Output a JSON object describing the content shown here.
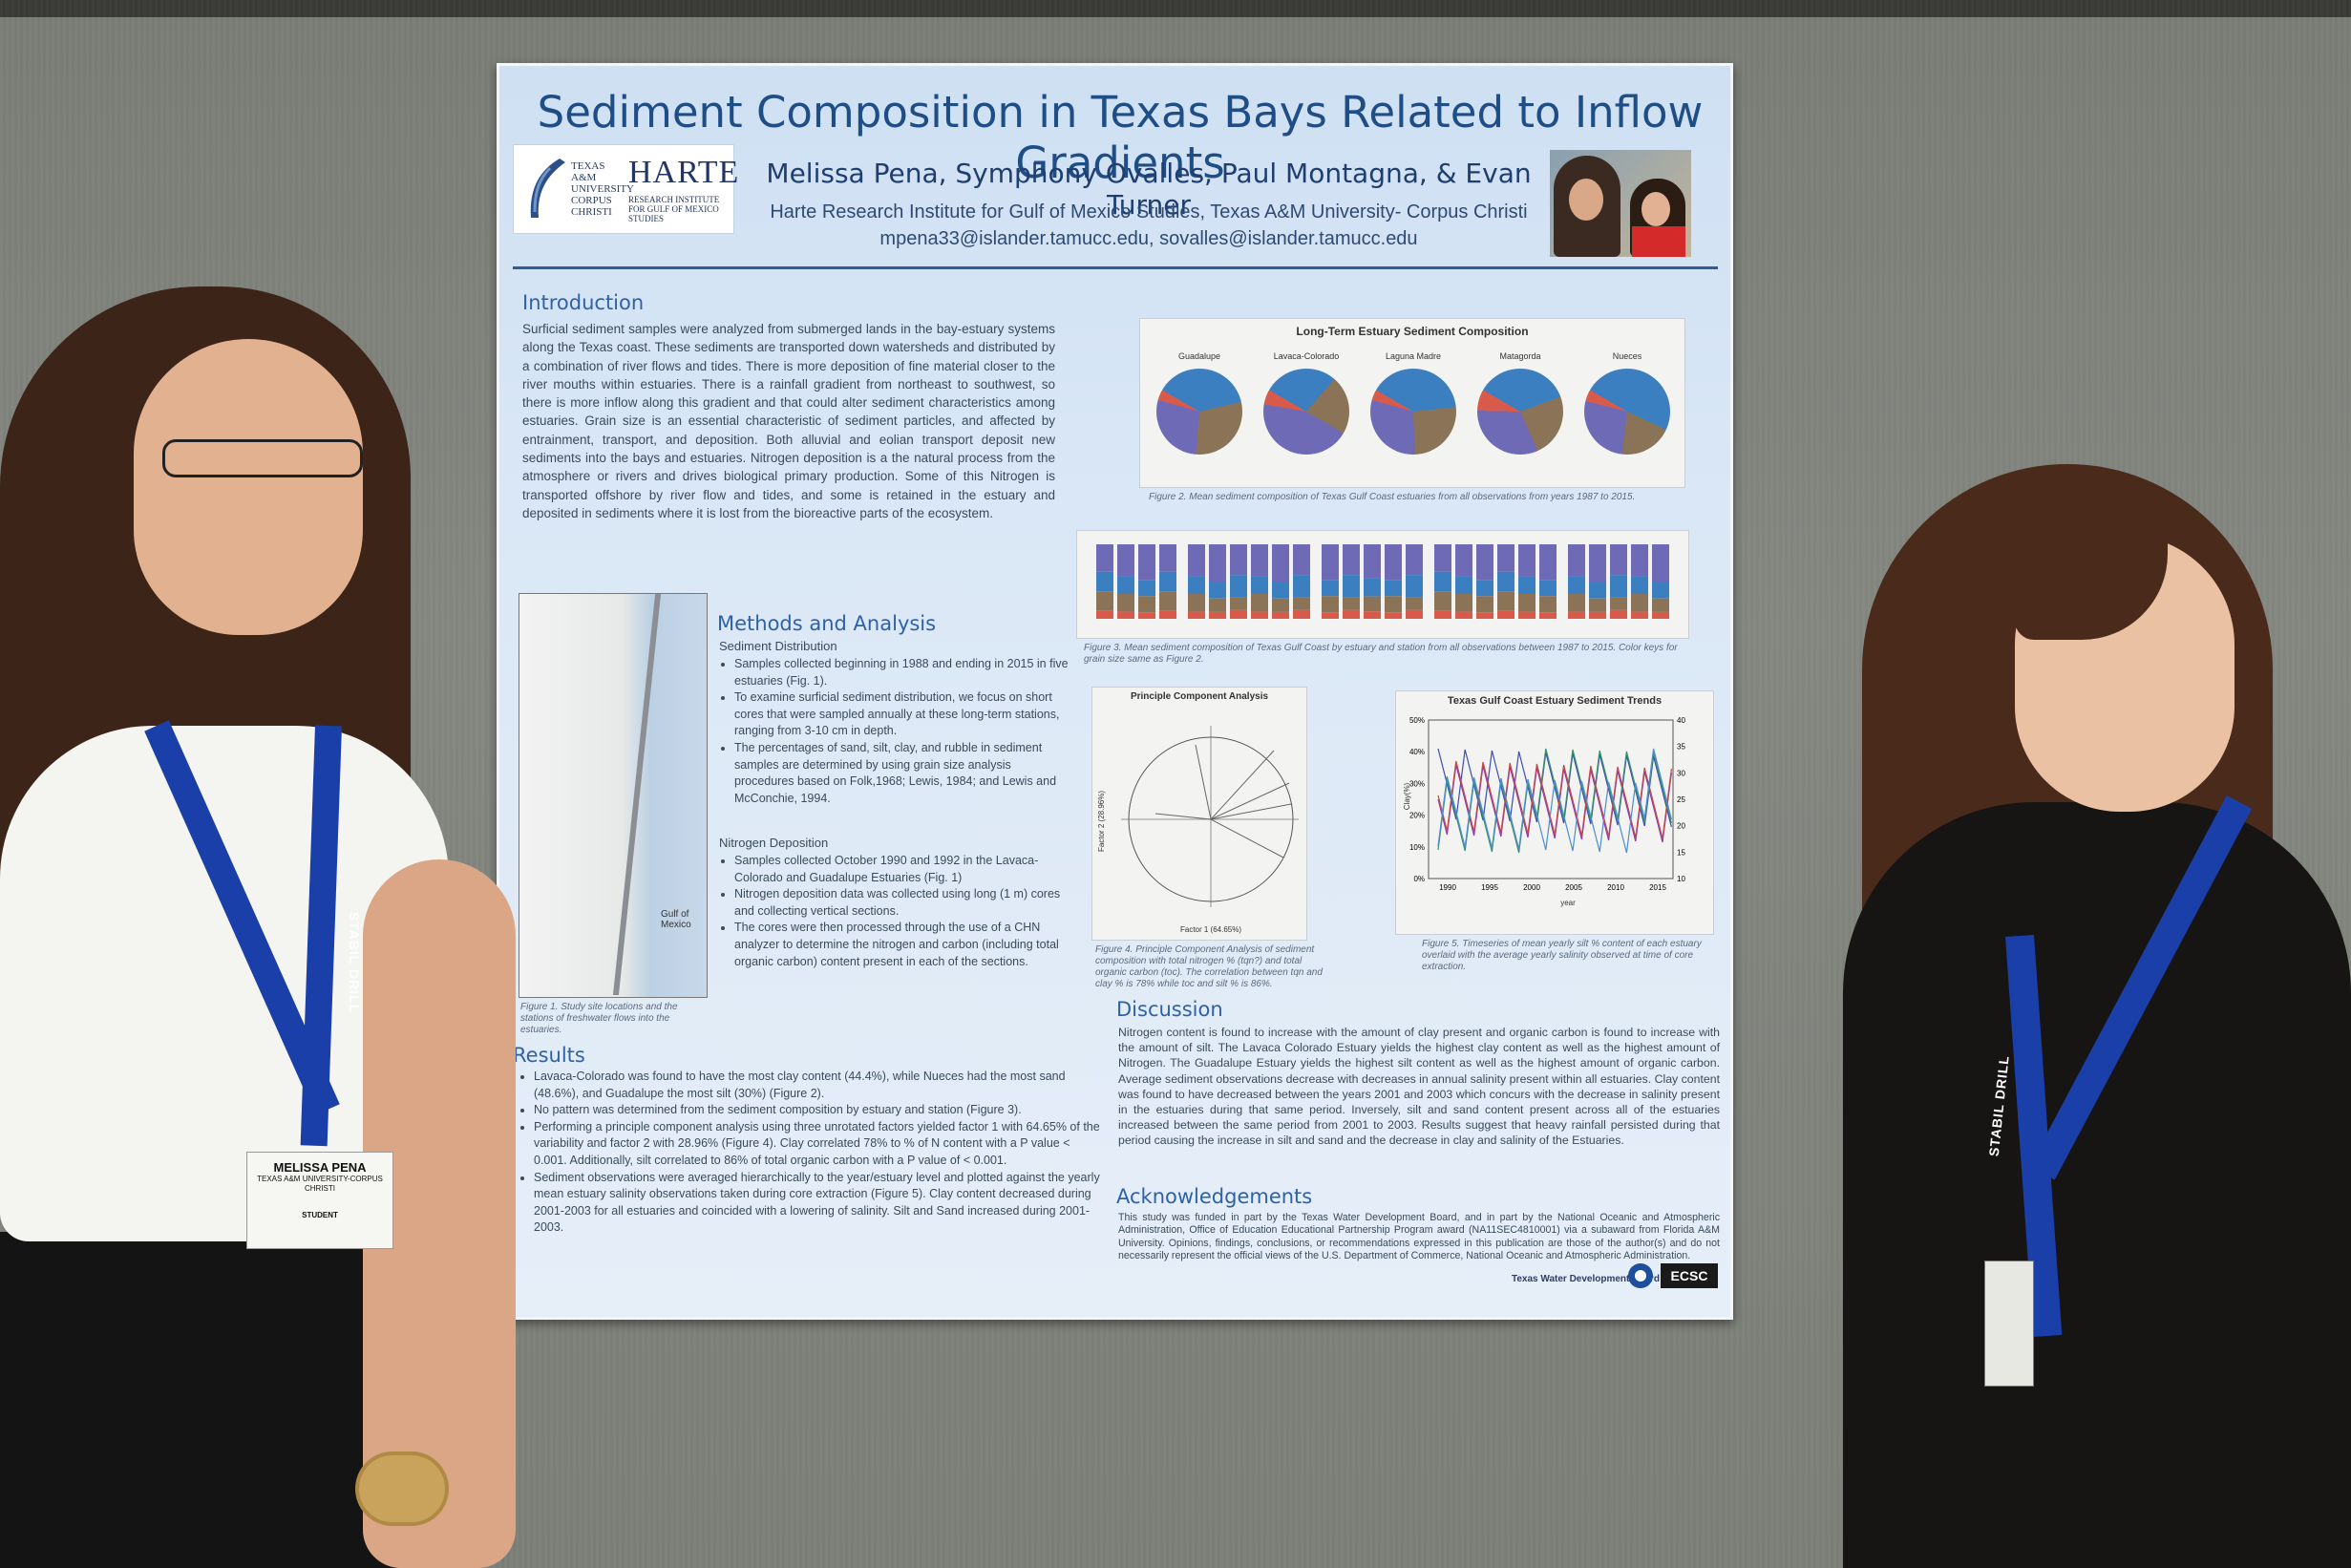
{
  "poster": {
    "title": "Sediment Composition in Texas Bays Related to Inflow Gradients",
    "authors": "Melissa Pena, Symphony Ovalles, Paul Montagna, & Evan Turner",
    "affiliation": "Harte Research Institute for Gulf of Mexico Studies, Texas A&M University- Corpus Christi",
    "emails": "mpena33@islander.tamucc.edu, sovalles@islander.tamucc.edu",
    "logo": {
      "univ": "TEXAS A&M UNIVERSITY CORPUS CHRISTI",
      "name": "HARTE",
      "sub": "RESEARCH INSTITUTE FOR GULF OF MEXICO STUDIES"
    },
    "introduction": {
      "heading": "Introduction",
      "text": "Surficial sediment samples were analyzed from submerged lands in the bay-estuary systems along the Texas coast. These sediments are transported down watersheds and distributed by a combination of river flows and tides. There is more deposition of fine material closer to the river mouths within estuaries. There is a rainfall gradient from northeast to southwest, so there is more inflow along this gradient and that could alter sediment characteristics among estuaries. Grain size is an essential characteristic of sediment particles, and affected by entrainment, transport, and deposition. Both alluvial and eolian transport deposit new sediments into the bays and estuaries. Nitrogen deposition is a the natural process from the atmosphere or rivers and drives biological primary production. Some of this Nitrogen is transported offshore by river flow and tides, and some is retained in the estuary and deposited in sediments where it is lost from the bioreactive parts of the ecosystem."
    },
    "methods": {
      "heading": "Methods and Analysis",
      "sub1": "Sediment Distribution",
      "bullets1": [
        "Samples collected beginning in 1988 and ending in 2015 in five estuaries (Fig. 1).",
        "To examine surficial sediment distribution, we focus on short cores that were sampled annually at these long-term stations, ranging from 3-10 cm in depth.",
        "The percentages of sand, silt, clay, and rubble in sediment samples are determined by using grain size analysis procedures based on Folk,1968; Lewis, 1984; and Lewis and McConchie, 1994."
      ],
      "sub2": "Nitrogen Deposition",
      "bullets2": [
        "Samples collected October 1990 and 1992 in the Lavaca-Colorado and Guadalupe Estuaries (Fig. 1)",
        "Nitrogen deposition data was collected using long (1 m) cores and collecting vertical sections.",
        "The cores were then processed through the use of a CHN analyzer to determine the nitrogen and carbon (including total organic carbon) content present in each of the sections."
      ]
    },
    "map": {
      "gulf_label": "Gulf of Mexico",
      "caption": "Figure 1. Study site locations and the stations of freshwater flows into the estuaries."
    },
    "results": {
      "heading": "Results",
      "bullets": [
        "Lavaca-Colorado was found to have the most clay content (44.4%), while Nueces had the most sand (48.6%), and Guadalupe the most silt (30%) (Figure 2).",
        "No pattern was determined from the sediment composition by estuary and station (Figure 3).",
        "Performing a principle component analysis using three unrotated factors yielded factor 1 with 64.65% of the variability and factor 2 with 28.96% (Figure 4). Clay correlated 78% to % of N content with a P value < 0.001. Additionally, silt correlated to 86% of total organic carbon with a P value of < 0.001.",
        "Sediment observations were averaged hierarchically to the year/estuary level and plotted against the yearly mean estuary salinity observations taken during core extraction (Figure 5). Clay content decreased during 2001-2003 for all estuaries and coincided with a lowering of salinity. Silt and Sand increased during 2001-2003."
      ]
    },
    "discussion": {
      "heading": "Discussion",
      "text": "Nitrogen content is found to increase with the amount of clay present and organic carbon is found to increase with the amount of silt. The Lavaca Colorado Estuary yields the highest clay content as well as the highest amount of Nitrogen. The Guadalupe Estuary yields the highest silt content as well as the highest amount of organic carbon. Average sediment observations decrease with decreases in annual salinity present within all estuaries. Clay content was found to have decreased between the years 2001 and 2003 which concurs with the decrease in salinity present in the estuaries during that same period. Inversely, silt and sand content present across all of the estuaries increased between the same period from 2001 to 2003. Results suggest that heavy rainfall persisted during that period causing the increase in silt and sand and the decrease in clay and salinity of the Estuaries."
    },
    "acknowledgements": {
      "heading": "Acknowledgements",
      "text": "This study was funded in part by the Texas Water Development Board, and in part by the National Oceanic and Atmospheric Administration, Office of Education Educational Partnership Program award (NA11SEC4810001) via a subaward from Florida A&M University. Opinions, findings, conclusions, or recommendations expressed in this publication are those of the author(s) and do not necessarily represent the official views of the U.S. Department of Commerce, National Oceanic and Atmospheric Administration."
    },
    "footer_logos": [
      "Texas Water Development Board",
      "ECSC"
    ],
    "fig2": {
      "title": "Long-Term Estuary Sediment Composition",
      "estuaries": [
        "Guadalupe",
        "Lavaca-Colorado",
        "Laguna Madre",
        "Matagorda",
        "Nueces"
      ],
      "caption": "Figure 2. Mean sediment composition of Texas Gulf Coast estuaries from all observations from years 1987 to 2015."
    },
    "fig3": {
      "caption": "Figure 3. Mean sediment composition of Texas Gulf Coast by estuary and station from all observations between 1987 to 2015. Color keys for grain size same as Figure 2."
    },
    "fig4": {
      "title": "Principle Component Analysis",
      "xlabel": "Factor 1 (64.65%)",
      "ylabel": "Factor 2 (28.96%)",
      "caption": "Figure 4. Principle Component Analysis of sediment composition with total nitrogen % (tqn?) and total organic carbon (toc). The correlation between tqn and clay % is 78% while toc and silt % is 86%."
    },
    "fig5": {
      "title": "Texas Gulf Coast Estuary Sediment Trends",
      "xlabel": "year",
      "ylabel": "Clay(%)",
      "caption": "Figure 5. Timeseries of mean yearly silt % content of each estuary overlaid with the average yearly salinity observed at time of core extraction."
    }
  },
  "people": {
    "left_badge_name": "MELISSA PENA",
    "left_badge_sub": "TEXAS A&M UNIVERSITY-CORPUS CHRISTI",
    "left_badge_role": "STUDENT",
    "lanyard_text": "STABIL DRILL"
  },
  "colors": {
    "sand": "#3b7fc0",
    "silt": "#8b7358",
    "clay": "#6e6ab6",
    "rubble": "#d85a4a",
    "poster_title": "#1f4e86"
  },
  "chart_data": [
    {
      "type": "pie",
      "title": "Long-Term Estuary Sediment Composition",
      "categories": [
        "Guadalupe",
        "Lavaca-Colorado",
        "Laguna Madre",
        "Matagorda",
        "Nueces"
      ],
      "series": [
        {
          "name": "sand",
          "values": [
            38,
            28,
            40,
            36,
            48.6
          ]
        },
        {
          "name": "silt",
          "values": [
            30,
            22,
            26,
            24,
            20
          ]
        },
        {
          "name": "clay",
          "values": [
            28,
            44.4,
            30,
            32,
            27
          ]
        },
        {
          "name": "rubble",
          "values": [
            4,
            5.6,
            4,
            8,
            4.4
          ]
        }
      ]
    },
    {
      "type": "scatter",
      "title": "Principle Component Analysis",
      "xlabel": "Factor 1 (64.65%)",
      "ylabel": "Factor 2 (28.96%)",
      "xlim": [
        -1.0,
        1.0
      ],
      "ylim": [
        -1.0,
        1.0
      ]
    },
    {
      "type": "line",
      "title": "Texas Gulf Coast Estuary Sediment Trends",
      "xlabel": "year",
      "ylabel": "Clay(%)",
      "xlim": [
        1985,
        2015
      ],
      "ylim": [
        0,
        50
      ],
      "x_ticks": [
        "1990",
        "1995",
        "2000",
        "2005",
        "2010",
        "2015"
      ],
      "y_ticks": [
        "0%",
        "10%",
        "20%",
        "30%",
        "40%",
        "50%"
      ],
      "y2_ticks": [
        "10",
        "15",
        "20",
        "25",
        "30",
        "35",
        "40"
      ]
    }
  ]
}
